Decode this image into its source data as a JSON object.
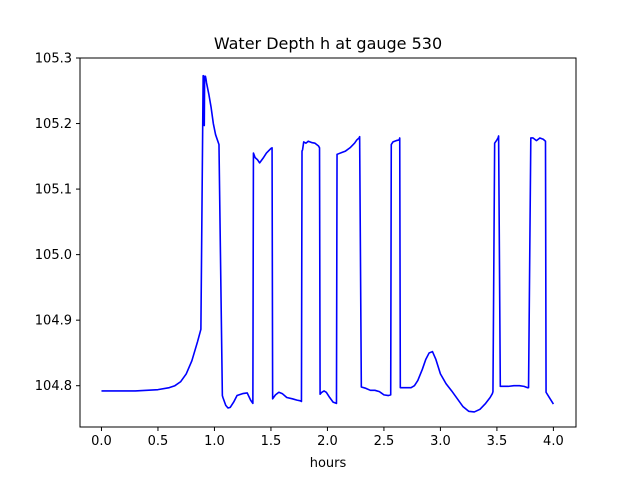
{
  "chart_data": {
    "type": "line",
    "title": "Water Depth h at gauge 530",
    "xlabel": "hours",
    "ylabel": "",
    "xlim": [
      -0.19,
      4.2
    ],
    "ylim": [
      104.737,
      105.3
    ],
    "xticks": [
      0.0,
      0.5,
      1.0,
      1.5,
      2.0,
      2.5,
      3.0,
      3.5,
      4.0
    ],
    "xtick_labels": [
      "0.0",
      "0.5",
      "1.0",
      "1.5",
      "2.0",
      "2.5",
      "3.0",
      "3.5",
      "4.0"
    ],
    "yticks": [
      104.8,
      104.9,
      105.0,
      105.1,
      105.2,
      105.3
    ],
    "ytick_labels": [
      "104.8",
      "104.9",
      "105.0",
      "105.1",
      "105.2",
      "105.3"
    ],
    "grid": false,
    "series": [
      {
        "color": "#0000ff",
        "x": [
          0.0,
          0.3,
          0.5,
          0.6,
          0.65,
          0.7,
          0.75,
          0.8,
          0.85,
          0.88,
          0.9,
          0.902,
          0.905,
          0.91,
          0.913,
          0.92,
          0.925,
          0.93,
          0.95,
          0.97,
          0.99,
          1.01,
          1.04,
          1.07,
          1.075,
          1.1,
          1.12,
          1.14,
          1.17,
          1.2,
          1.25,
          1.29,
          1.32,
          1.34,
          1.345,
          1.36,
          1.38,
          1.4,
          1.43,
          1.46,
          1.5,
          1.51,
          1.515,
          1.54,
          1.57,
          1.6,
          1.64,
          1.69,
          1.73,
          1.76,
          1.77,
          1.775,
          1.78,
          1.79,
          1.81,
          1.83,
          1.86,
          1.89,
          1.92,
          1.93,
          1.935,
          1.95,
          1.97,
          1.99,
          2.02,
          2.05,
          2.08,
          2.085,
          2.1,
          2.13,
          2.16,
          2.2,
          2.24,
          2.26,
          2.28,
          2.285,
          2.3,
          2.34,
          2.38,
          2.42,
          2.46,
          2.5,
          2.54,
          2.56,
          2.565,
          2.58,
          2.61,
          2.635,
          2.64,
          2.645,
          2.66,
          2.7,
          2.74,
          2.77,
          2.8,
          2.84,
          2.87,
          2.9,
          2.93,
          2.96,
          3.0,
          3.05,
          3.1,
          3.15,
          3.2,
          3.25,
          3.3,
          3.35,
          3.4,
          3.44,
          3.46,
          3.465,
          3.48,
          3.5,
          3.51,
          3.515,
          3.53,
          3.6,
          3.65,
          3.7,
          3.74,
          3.77,
          3.78,
          3.8,
          3.82,
          3.85,
          3.88,
          3.91,
          3.93,
          3.935,
          3.96,
          4.0
        ],
        "y": [
          104.792,
          104.792,
          104.794,
          104.797,
          104.8,
          104.806,
          104.818,
          104.838,
          104.867,
          104.886,
          105.273,
          105.273,
          105.2,
          105.197,
          105.272,
          105.272,
          105.268,
          105.262,
          105.245,
          105.225,
          105.2,
          105.183,
          105.168,
          104.785,
          104.782,
          104.77,
          104.766,
          104.767,
          104.775,
          104.785,
          104.788,
          104.789,
          104.778,
          104.773,
          105.155,
          105.148,
          105.145,
          105.14,
          105.147,
          105.155,
          105.162,
          105.163,
          104.78,
          104.786,
          104.79,
          104.788,
          104.782,
          104.78,
          104.778,
          104.777,
          104.776,
          105.158,
          105.16,
          105.172,
          105.17,
          105.173,
          105.171,
          105.17,
          105.166,
          105.163,
          104.787,
          104.79,
          104.792,
          104.79,
          104.782,
          104.775,
          104.773,
          105.153,
          105.154,
          105.156,
          105.158,
          105.163,
          105.17,
          105.175,
          105.178,
          105.18,
          104.798,
          104.796,
          104.793,
          104.793,
          104.791,
          104.786,
          104.785,
          104.786,
          105.168,
          105.172,
          105.174,
          105.175,
          105.178,
          104.797,
          104.797,
          104.797,
          104.797,
          104.8,
          104.808,
          104.825,
          104.84,
          104.85,
          104.852,
          104.84,
          104.818,
          104.803,
          104.792,
          104.78,
          104.768,
          104.761,
          104.76,
          104.764,
          104.773,
          104.782,
          104.788,
          104.791,
          105.17,
          105.175,
          105.178,
          105.181,
          104.799,
          104.799,
          104.8,
          104.8,
          104.799,
          104.797,
          104.797,
          105.178,
          105.178,
          105.174,
          105.178,
          105.176,
          105.173,
          104.79,
          104.783,
          104.772
        ]
      }
    ]
  }
}
